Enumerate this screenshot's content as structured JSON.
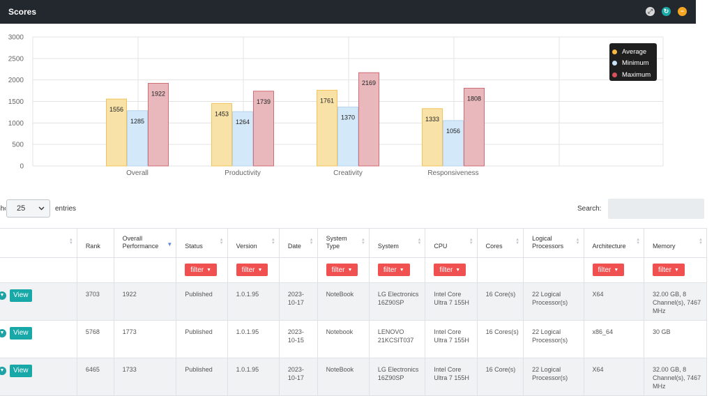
{
  "panel": {
    "title": "Scores",
    "buttons": [
      {
        "icon": "expand-icon",
        "color": "#d8d8d8"
      },
      {
        "icon": "refresh-icon",
        "color": "#19a9a6"
      },
      {
        "icon": "collapse-icon",
        "color": "#f5a623"
      }
    ]
  },
  "chart_data": {
    "type": "bar",
    "categories": [
      "Overall",
      "Productivity",
      "Creativity",
      "Responsiveness"
    ],
    "series": [
      {
        "name": "Average",
        "values": [
          1556,
          1453,
          1761,
          1333
        ],
        "fill": "#f8e2a8",
        "stroke": "#f2c35a"
      },
      {
        "name": "Minimum",
        "values": [
          1285,
          1264,
          1370,
          1056
        ],
        "fill": "#d3e8f8",
        "stroke": "#b7d4ee"
      },
      {
        "name": "Maximum",
        "values": [
          1922,
          1739,
          2169,
          1808
        ],
        "fill": "#e8b8bc",
        "stroke": "#d06c74"
      }
    ],
    "y_ticks": [
      0,
      500,
      1000,
      1500,
      2000,
      2500,
      3000
    ],
    "ylim": [
      0,
      3000
    ],
    "grid": true,
    "legend_position": "top-right",
    "legend_dot_colors": [
      "#f7b942",
      "#c8e2f7",
      "#d9525b"
    ]
  },
  "length_menu": {
    "prefix": "Show",
    "value": "25",
    "suffix": "entries"
  },
  "search": {
    "label": "Search:",
    "value": ""
  },
  "table": {
    "columns": [
      {
        "label": "",
        "sort": "both"
      },
      {
        "label": "Rank",
        "sort": "none"
      },
      {
        "label": "Overall Performance",
        "sort": "desc"
      },
      {
        "label": "Status",
        "sort": "both"
      },
      {
        "label": "Version",
        "sort": "both"
      },
      {
        "label": "Date",
        "sort": "both"
      },
      {
        "label": "System Type",
        "sort": "both"
      },
      {
        "label": "System",
        "sort": "both"
      },
      {
        "label": "CPU",
        "sort": "both"
      },
      {
        "label": "Cores",
        "sort": "both"
      },
      {
        "label": "Logical Processors",
        "sort": "both"
      },
      {
        "label": "Architecture",
        "sort": "both"
      },
      {
        "label": "Memory",
        "sort": "both"
      }
    ],
    "filter_label": "filter",
    "filter_columns": [
      3,
      4,
      6,
      7,
      8,
      11,
      12
    ],
    "view_label": "View",
    "rows": [
      [
        "3703",
        "1922",
        "Published",
        "1.0.1.95",
        "2023-10-17",
        "NoteBook",
        "LG Electronics 16Z90SP",
        "Intel Core Ultra 7 155H",
        "16 Core(s)",
        "22 Logical Processor(s)",
        "X64",
        "32.00 GB, 8 Channel(s), 7467 MHz"
      ],
      [
        "5768",
        "1773",
        "Published",
        "1.0.1.95",
        "2023-10-15",
        "Notebook",
        "LENOVO 21KCSIT037",
        "Intel Core Ultra 7 155H",
        "16 Cores(s)",
        "22 Logical Processor(s)",
        "x86_64",
        "30 GB"
      ],
      [
        "6465",
        "1733",
        "Published",
        "1.0.1.95",
        "2023-10-17",
        "NoteBook",
        "LG Electronics 16Z90SP",
        "Intel Core Ultra 7 155H",
        "16 Core(s)",
        "22 Logical Processor(s)",
        "X64",
        "32.00 GB, 8 Channel(s), 7467 MHz"
      ]
    ]
  }
}
